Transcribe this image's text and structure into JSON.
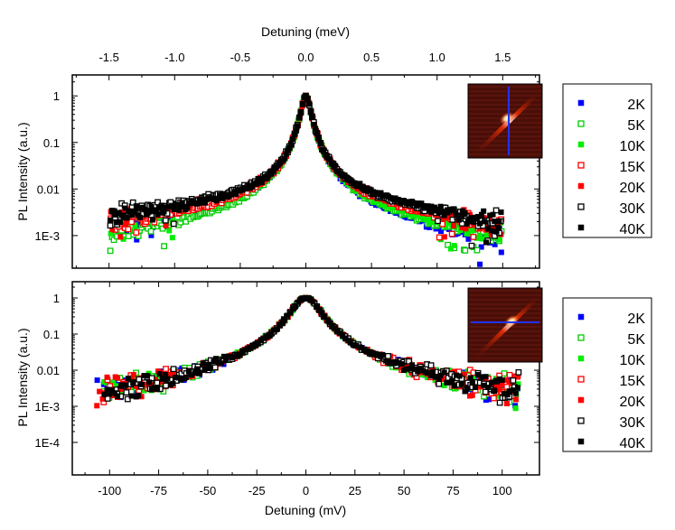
{
  "chart_data": [
    {
      "type": "scatter",
      "panel": "top",
      "xlabel": "Detuning (meV)",
      "ylabel": "PL Intensity (a.u.)",
      "yscale": "log",
      "xlim": [
        -1.78,
        1.78
      ],
      "ylim_exponent": [
        -3.7,
        0.45
      ],
      "xticks": [
        -1.5,
        -1.0,
        -0.5,
        0.0,
        0.5,
        1.0,
        1.5
      ],
      "xtick_labels": [
        "-1.5",
        "-1.0",
        "-0.5",
        "0.0",
        "0.5",
        "1.0",
        "1.5"
      ],
      "yticks": [
        1,
        0.1,
        0.01,
        0.001
      ],
      "ytick_labels": [
        "1",
        "0.1",
        "0.01",
        "1E-3"
      ],
      "legend_position": "right",
      "inset": "spectral image with vertical blue line",
      "series": [
        {
          "name": "2K",
          "color": "#0000ff",
          "marker": "filled-square",
          "center_exponent": 0,
          "plateau_exponent": -2.6,
          "right_exponent": -3.1
        },
        {
          "name": "5K",
          "color": "#00cc00",
          "marker": "open-square",
          "center_exponent": 0,
          "plateau_exponent": -2.85,
          "right_exponent": -2.9
        },
        {
          "name": "10K",
          "color": "#00ee00",
          "marker": "filled-square",
          "center_exponent": 0,
          "plateau_exponent": -2.45,
          "right_exponent": -2.75
        },
        {
          "name": "15K",
          "color": "#ff0000",
          "marker": "open-square",
          "center_exponent": 0,
          "plateau_exponent": -2.45,
          "right_exponent": -2.5
        },
        {
          "name": "20K",
          "color": "#ff0000",
          "marker": "filled-square",
          "center_exponent": 0,
          "plateau_exponent": -2.25,
          "right_exponent": -2.4
        },
        {
          "name": "30K",
          "color": "#000000",
          "marker": "open-square",
          "center_exponent": 0,
          "plateau_exponent": -2.2,
          "right_exponent": -2.35
        },
        {
          "name": "40K",
          "color": "#000000",
          "marker": "filled-square",
          "center_exponent": 0,
          "plateau_exponent": -2.3,
          "right_exponent": -2.3
        }
      ]
    },
    {
      "type": "scatter",
      "panel": "bottom",
      "xlabel": "Detuning (mV)",
      "ylabel": "PL Intensity (a.u.)",
      "yscale": "log",
      "xlim": [
        -119,
        119
      ],
      "ylim_exponent": [
        -4.9,
        0.45
      ],
      "xticks": [
        -100,
        -75,
        -50,
        -25,
        0,
        25,
        50,
        75,
        100
      ],
      "xtick_labels": [
        "-100",
        "-75",
        "-50",
        "-25",
        "0",
        "25",
        "50",
        "75",
        "100"
      ],
      "yticks": [
        1,
        0.1,
        0.01,
        0.001,
        0.0001
      ],
      "ytick_labels": [
        "1",
        "0.1",
        "0.01",
        "1E-3",
        "1E-4"
      ],
      "legend_position": "right",
      "inset": "spectral image with horizontal blue line",
      "series": [
        {
          "name": "2K",
          "color": "#0000ff",
          "marker": "filled-square"
        },
        {
          "name": "5K",
          "color": "#00cc00",
          "marker": "open-square"
        },
        {
          "name": "10K",
          "color": "#00ee00",
          "marker": "filled-square"
        },
        {
          "name": "15K",
          "color": "#ff0000",
          "marker": "open-square"
        },
        {
          "name": "20K",
          "color": "#ff0000",
          "marker": "filled-square"
        },
        {
          "name": "30K",
          "color": "#000000",
          "marker": "open-square"
        },
        {
          "name": "40K",
          "color": "#000000",
          "marker": "filled-square"
        }
      ]
    }
  ]
}
